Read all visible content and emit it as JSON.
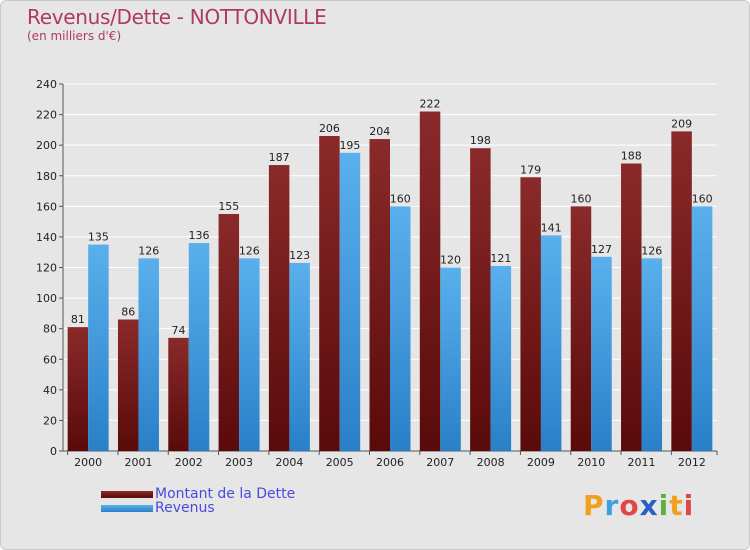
{
  "header": {
    "title": "Revenus/Dette - NOTTONVILLE",
    "subtitle": "(en milliers d'€)"
  },
  "colors": {
    "dette": "#7a1a1a",
    "revenus": "#3a9ae0",
    "title": "#b03a5a",
    "legend_text": "#4a4ae0"
  },
  "logo": {
    "text": "Proxiti",
    "letters": [
      {
        "ch": "P",
        "color": "#f0a020"
      },
      {
        "ch": "r",
        "color": "#3aa0e0"
      },
      {
        "ch": "o",
        "color": "#e04848"
      },
      {
        "ch": "x",
        "color": "#2a60c0"
      },
      {
        "ch": "i",
        "color": "#60b040"
      },
      {
        "ch": "t",
        "color": "#f0a020"
      },
      {
        "ch": "i",
        "color": "#e04848"
      }
    ]
  },
  "chart_data": {
    "type": "bar",
    "title": "Revenus/Dette - NOTTONVILLE",
    "subtitle": "(en milliers d'€)",
    "categories": [
      "2000",
      "2001",
      "2002",
      "2003",
      "2004",
      "2005",
      "2006",
      "2007",
      "2008",
      "2009",
      "2010",
      "2011",
      "2012"
    ],
    "series": [
      {
        "name": "Montant de la Dette",
        "color": "#7a1a1a",
        "values": [
          81,
          86,
          74,
          155,
          187,
          206,
          204,
          222,
          198,
          179,
          160,
          188,
          209
        ]
      },
      {
        "name": "Revenus",
        "color": "#3a9ae0",
        "values": [
          135,
          126,
          136,
          126,
          123,
          195,
          160,
          120,
          121,
          141,
          127,
          126,
          160
        ]
      }
    ],
    "ylim": [
      0,
      240
    ],
    "yticks": [
      0,
      20,
      40,
      60,
      80,
      100,
      120,
      140,
      160,
      180,
      200,
      220,
      240
    ],
    "grid": true,
    "legend": "bottom-left"
  }
}
